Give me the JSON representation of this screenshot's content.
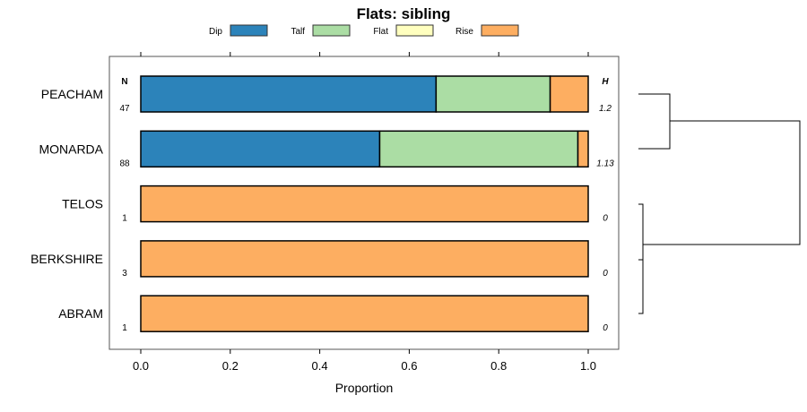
{
  "chart_data": {
    "type": "bar",
    "orientation": "horizontal-stacked",
    "title": "Flats: sibling",
    "xlabel": "Proportion",
    "xlim": [
      0,
      1
    ],
    "xticks": [
      "0.0",
      "0.2",
      "0.4",
      "0.6",
      "0.8",
      "1.0"
    ],
    "legend": [
      {
        "name": "Dip",
        "color": "#2C83BA"
      },
      {
        "name": "Talf",
        "color": "#ABDDA4"
      },
      {
        "name": "Flat",
        "color": "#FFFFBF"
      },
      {
        "name": "Rise",
        "color": "#FDAE61"
      }
    ],
    "n_header": "N",
    "h_header": "H",
    "categories": [
      "PEACHAM",
      "MONARDA",
      "TELOS",
      "BERKSHIRE",
      "ABRAM"
    ],
    "n": [
      "47",
      "88",
      "1",
      "3",
      "1"
    ],
    "h": [
      "1.2",
      "1.13",
      "0",
      "0",
      "0"
    ],
    "series": [
      {
        "name": "Dip",
        "values": [
          0.66,
          0.534,
          0,
          0,
          0
        ]
      },
      {
        "name": "Talf",
        "values": [
          0.255,
          0.443,
          0,
          0,
          0
        ]
      },
      {
        "name": "Flat",
        "values": [
          0,
          0,
          0,
          0,
          0
        ]
      },
      {
        "name": "Rise",
        "values": [
          0.085,
          0.023,
          1,
          1,
          1
        ]
      }
    ],
    "dendrogram": {
      "merges": [
        {
          "rows": [
            "TELOS",
            "BERKSHIRE",
            "ABRAM"
          ],
          "height": 0.01
        },
        {
          "rows": [
            "PEACHAM",
            "MONARDA"
          ],
          "height": 0.2
        },
        {
          "rows": [
            "upper",
            "lower"
          ],
          "height": 1
        }
      ]
    }
  }
}
